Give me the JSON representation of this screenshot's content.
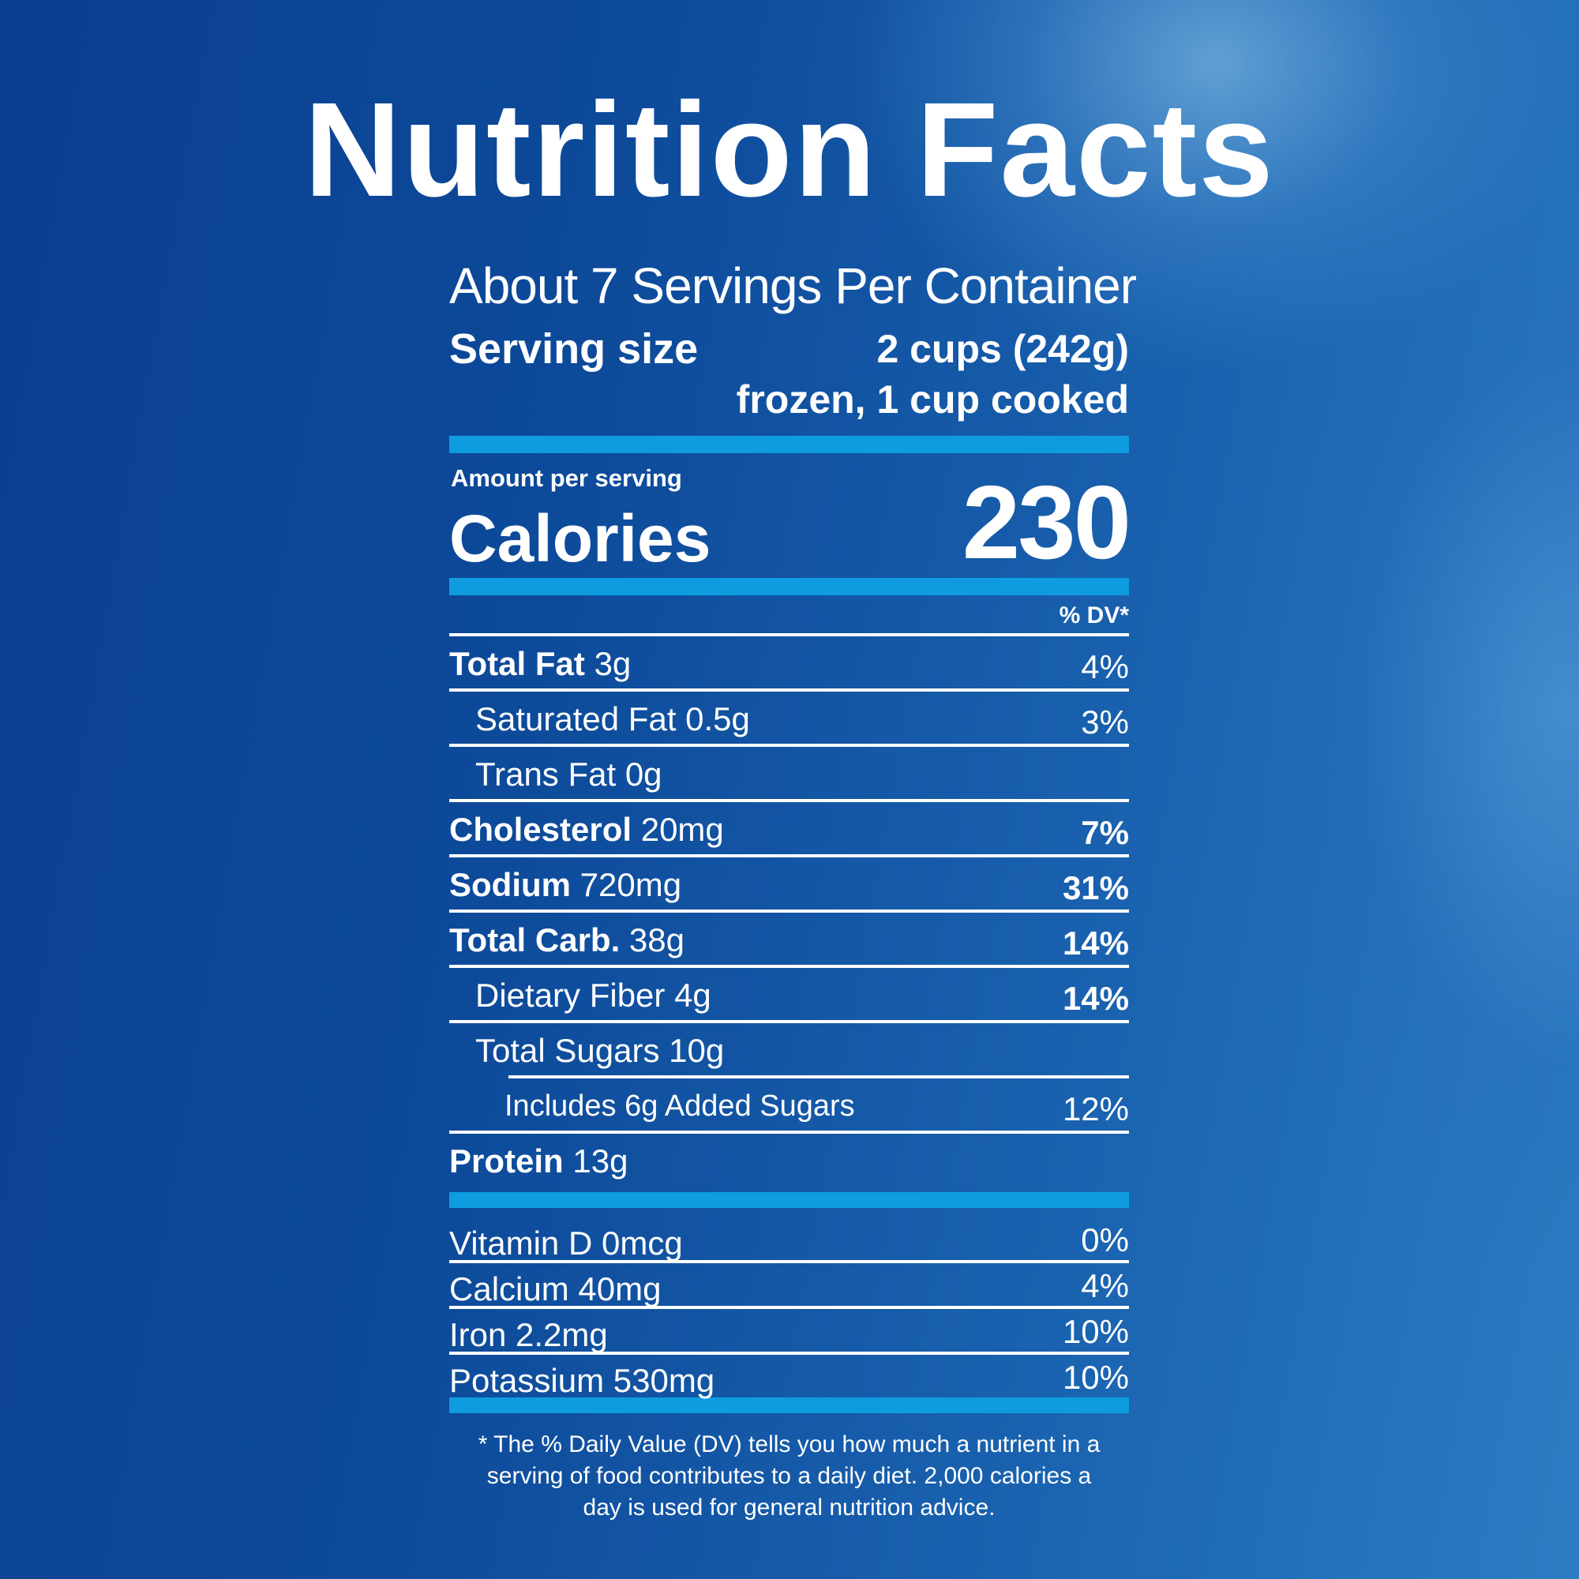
{
  "title": "Nutrition Facts",
  "servings_per_container": "About 7 Servings Per Container",
  "serving_size": {
    "label": "Serving size",
    "value_line1": "2 cups (242g)",
    "value_line2": "frozen, 1 cup cooked"
  },
  "calories": {
    "amount_label": "Amount per serving",
    "label": "Calories",
    "value": "230"
  },
  "dv_header": "% DV*",
  "nutrients": [
    {
      "name": "Total Fat",
      "amount": "3g",
      "dv": "4%"
    },
    {
      "name": "Saturated Fat",
      "amount": "0.5g",
      "dv": "3%"
    },
    {
      "name": "Trans Fat",
      "amount": "0g",
      "dv": ""
    },
    {
      "name": "Cholesterol",
      "amount": "20mg",
      "dv": "7%"
    },
    {
      "name": "Sodium",
      "amount": "720mg",
      "dv": "31%"
    },
    {
      "name": "Total Carb.",
      "amount": "38g",
      "dv": "14%"
    },
    {
      "name": "Dietary Fiber",
      "amount": "4g",
      "dv": "14%"
    },
    {
      "name": "Total Sugars",
      "amount": "10g",
      "dv": ""
    },
    {
      "name": "Includes 6g Added Sugars",
      "amount": "",
      "dv": "12%"
    },
    {
      "name": "Protein",
      "amount": "13g",
      "dv": ""
    }
  ],
  "vitamins": [
    {
      "name": "Vitamin D",
      "amount": "0mcg",
      "dv": "0%"
    },
    {
      "name": "Calcium",
      "amount": "40mg",
      "dv": "4%"
    },
    {
      "name": "Iron",
      "amount": "2.2mg",
      "dv": "10%"
    },
    {
      "name": "Potassium",
      "amount": "530mg",
      "dv": "10%"
    }
  ],
  "footnote": "* The % Daily Value (DV) tells you how much a nutrient in a serving of food contributes to a daily diet. 2,000 calories a day is used for general nutrition advice."
}
